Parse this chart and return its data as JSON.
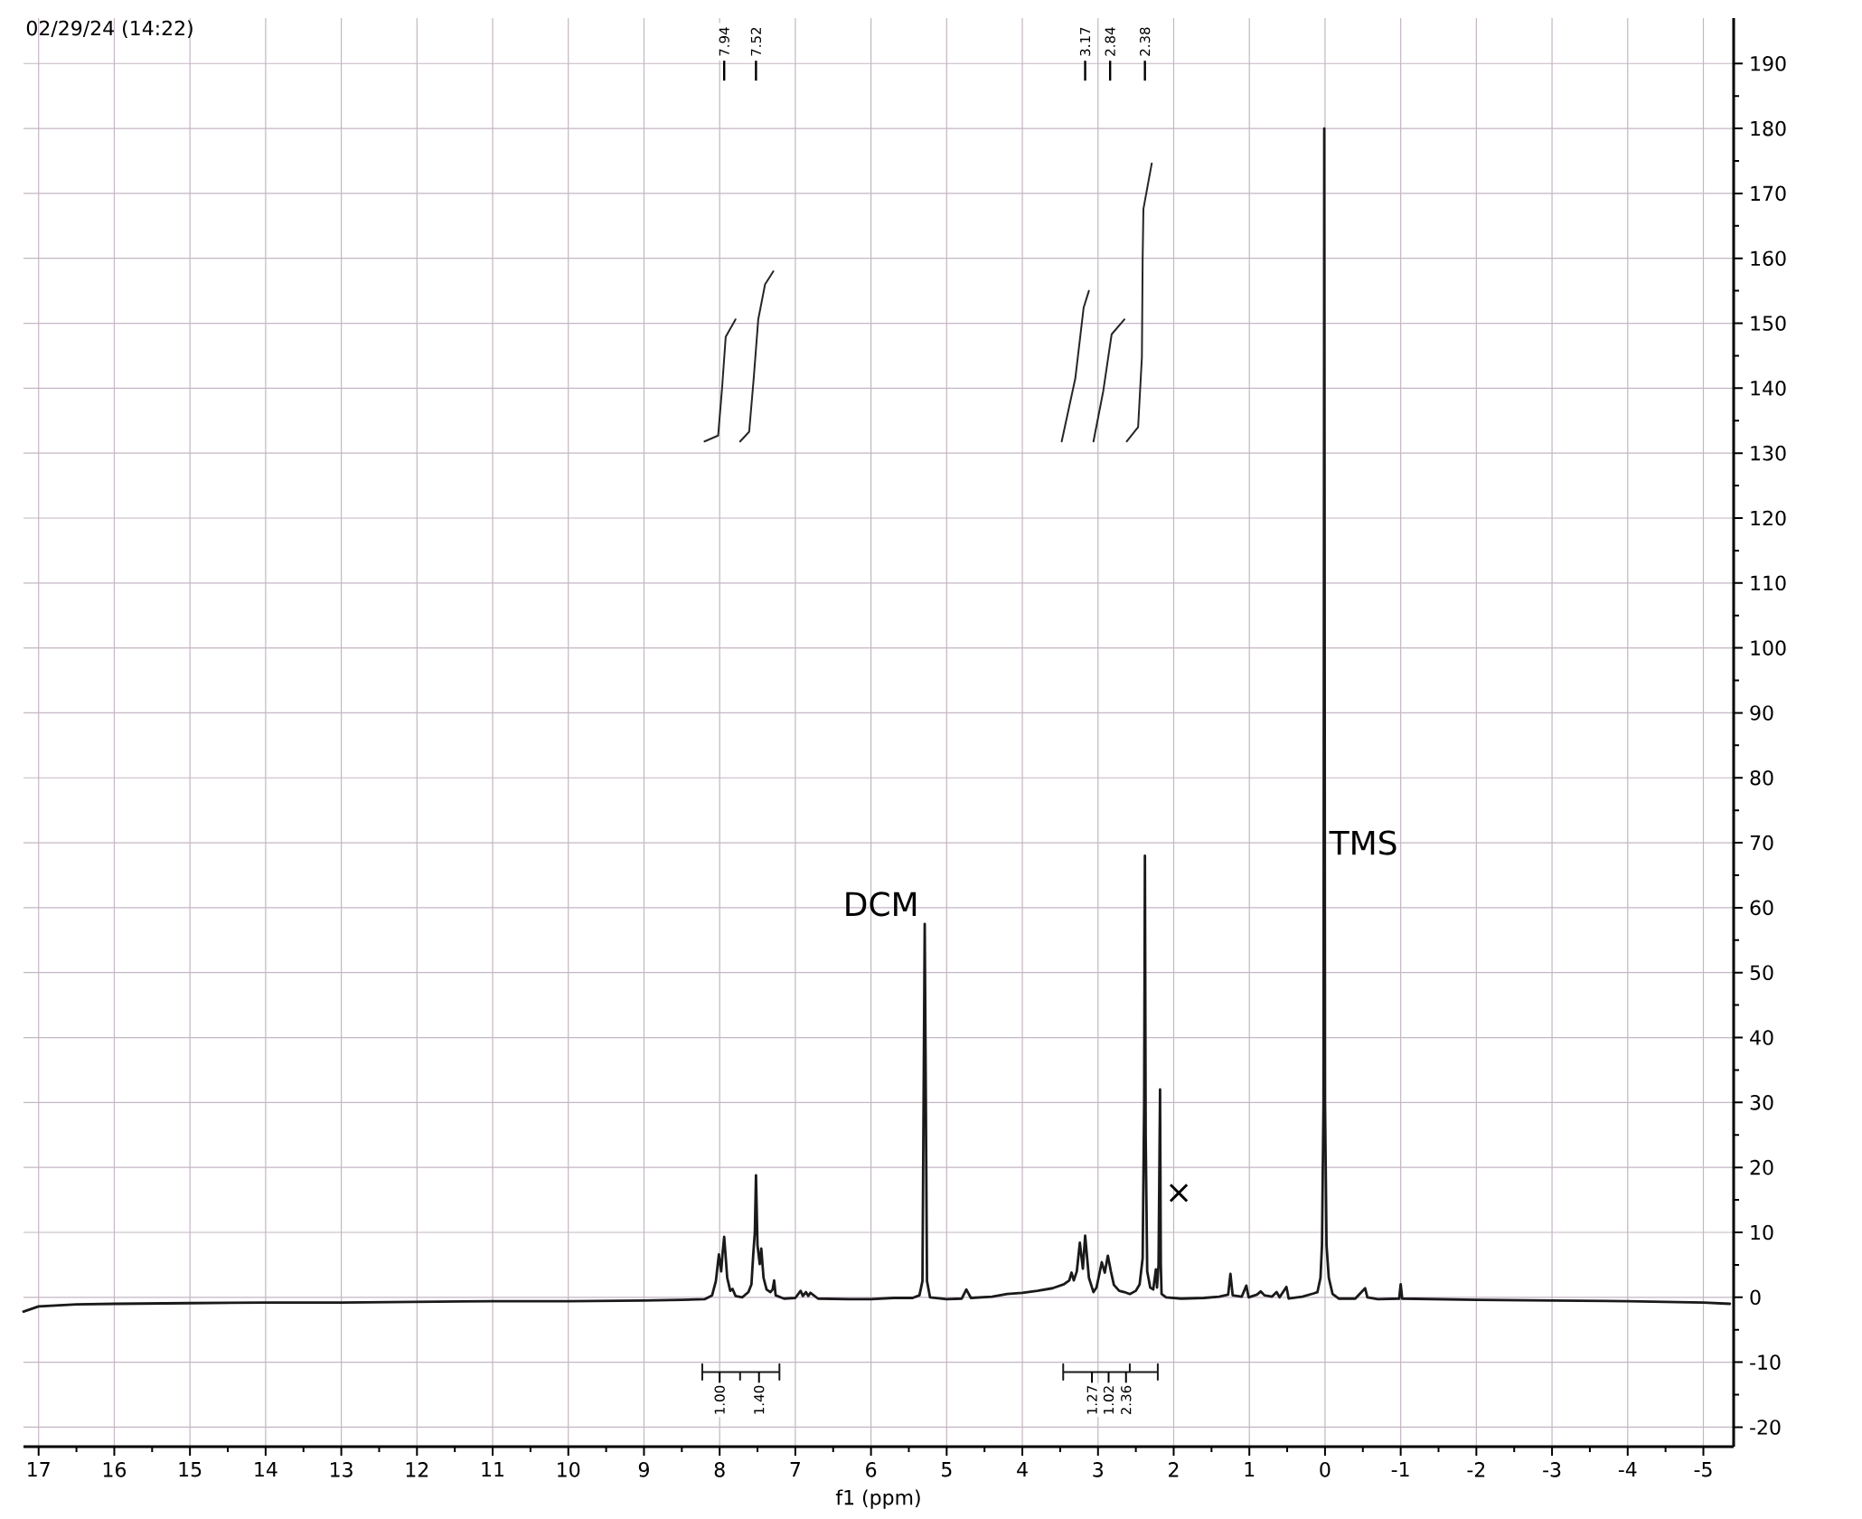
{
  "chart_data": {
    "type": "line",
    "xlabel": "f1 (ppm)",
    "xlim": [
      17.2,
      -5.4
    ],
    "ylim": [
      -23,
      197
    ],
    "xticks": [
      17,
      16,
      15,
      14,
      13,
      12,
      11,
      10,
      9,
      8,
      7,
      6,
      5,
      4,
      3,
      2,
      1,
      0,
      -1,
      -2,
      -3,
      -4,
      -5
    ],
    "yticks": [
      -20,
      -10,
      0,
      10,
      20,
      30,
      40,
      50,
      60,
      70,
      80,
      90,
      100,
      110,
      120,
      130,
      140,
      150,
      160,
      170,
      180,
      190
    ],
    "grid": true,
    "series": [
      {
        "color": "#1a1a1a",
        "x": [
          17.2,
          17.0,
          16.5,
          16.0,
          15.0,
          14.0,
          13.0,
          12.0,
          11.0,
          10.0,
          9.0,
          8.5,
          8.2,
          8.1,
          8.05,
          8.01,
          7.98,
          7.96,
          7.94,
          7.9,
          7.86,
          7.83,
          7.79,
          7.7,
          7.62,
          7.58,
          7.555,
          7.535,
          7.52,
          7.5,
          7.47,
          7.45,
          7.42,
          7.38,
          7.33,
          7.3,
          7.28,
          7.26,
          7.15,
          7.0,
          6.93,
          6.9,
          6.86,
          6.83,
          6.8,
          6.7,
          6.3,
          6.0,
          5.7,
          5.45,
          5.36,
          5.32,
          5.29,
          5.26,
          5.22,
          5.0,
          4.8,
          4.74,
          4.68,
          4.4,
          4.2,
          4.0,
          3.8,
          3.6,
          3.45,
          3.38,
          3.35,
          3.32,
          3.28,
          3.24,
          3.2,
          3.17,
          3.12,
          3.06,
          3.02,
          2.95,
          2.91,
          2.87,
          2.83,
          2.79,
          2.72,
          2.65,
          2.58,
          2.5,
          2.45,
          2.41,
          2.39,
          2.38,
          2.37,
          2.35,
          2.31,
          2.27,
          2.235,
          2.22,
          2.2,
          2.18,
          2.17,
          2.16,
          2.1,
          1.9,
          1.6,
          1.4,
          1.28,
          1.25,
          1.22,
          1.1,
          1.04,
          1.01,
          0.9,
          0.85,
          0.8,
          0.7,
          0.64,
          0.6,
          0.51,
          0.48,
          0.3,
          0.15,
          0.1,
          0.06,
          0.04,
          0.02,
          0.01,
          0.0,
          -0.02,
          -0.05,
          -0.1,
          -0.18,
          -0.4,
          -0.53,
          -0.56,
          -0.7,
          -0.98,
          -1.0,
          -1.02,
          -2.0,
          -3.0,
          -4.0,
          -5.0,
          -5.35
        ],
        "values": [
          -2.2,
          -1.4,
          -1.1,
          -1.0,
          -0.9,
          -0.8,
          -0.8,
          -0.7,
          -0.6,
          -0.6,
          -0.5,
          -0.4,
          -0.3,
          0.3,
          2.5,
          6.6,
          4.0,
          7.0,
          9.3,
          3.0,
          1.0,
          1.3,
          0.2,
          0.0,
          0.8,
          2.0,
          6.8,
          10,
          18.8,
          8,
          5.1,
          7.5,
          3.0,
          1.2,
          0.8,
          1.2,
          2.6,
          0.3,
          -0.2,
          -0.1,
          1.0,
          0.2,
          0.8,
          0.2,
          0.7,
          -0.2,
          -0.3,
          -0.3,
          -0.1,
          -0.1,
          0.3,
          2.5,
          57.5,
          2.5,
          0.0,
          -0.3,
          -0.2,
          1.2,
          -0.1,
          0.1,
          0.5,
          0.7,
          1.0,
          1.4,
          2.0,
          2.6,
          3.8,
          2.6,
          4.0,
          8.4,
          4.4,
          9.5,
          3.0,
          0.8,
          1.5,
          5.4,
          3.8,
          6.4,
          4.0,
          1.9,
          1.0,
          0.8,
          0.5,
          1.0,
          2.0,
          6.0,
          30,
          68,
          25,
          4.0,
          1.5,
          1.2,
          4.3,
          1.5,
          5.0,
          32,
          5.0,
          0.5,
          0.0,
          -0.2,
          -0.1,
          0.1,
          0.4,
          3.6,
          0.3,
          0.1,
          1.8,
          0.0,
          0.4,
          0.9,
          0.3,
          0.1,
          0.8,
          0.0,
          1.6,
          -0.2,
          0.1,
          0.6,
          0.8,
          3.0,
          8.0,
          30,
          180,
          30,
          8.0,
          3.0,
          0.5,
          -0.2,
          -0.2,
          1.4,
          0.0,
          -0.3,
          -0.2,
          2.0,
          -0.2,
          -0.4,
          -0.5,
          -0.6,
          -0.8,
          -1.0
        ]
      },
      {
        "color": "#262626",
        "x": [
          8.2,
          8.02,
          7.97,
          7.92,
          7.79
        ],
        "values": [
          131.8,
          132.7,
          139.7,
          147.9,
          150.6
        ]
      },
      {
        "color": "#262626",
        "x": [
          7.73,
          7.61,
          7.55,
          7.49,
          7.4,
          7.29
        ],
        "values": [
          131.8,
          133.3,
          141.5,
          150.6,
          156.0,
          158.0
        ]
      },
      {
        "color": "#262626",
        "x": [
          3.48,
          3.3,
          3.19,
          3.12
        ],
        "values": [
          131.8,
          141.5,
          152.4,
          155.0
        ]
      },
      {
        "color": "#262626",
        "x": [
          3.06,
          2.93,
          2.82,
          2.65
        ],
        "values": [
          131.8,
          139.6,
          148.3,
          150.6
        ]
      },
      {
        "color": "#262626",
        "x": [
          2.62,
          2.47,
          2.42,
          2.41,
          2.4,
          2.29
        ],
        "values": [
          131.8,
          134.0,
          144.8,
          160.0,
          167.6,
          174.6
        ]
      },
      {
        "color": "#1a1a1a",
        "x": [
          8.23,
          8.23,
          8.23,
          7.73,
          7.73,
          7.73,
          7.21,
          7.21,
          7.21
        ],
        "values": [
          -10.3,
          -12.7,
          -11.5,
          -11.5,
          -12.7,
          -11.5,
          -11.5,
          -10.3,
          -12.7
        ]
      },
      {
        "color": "#1a1a1a",
        "x": [
          3.46,
          3.46,
          3.46,
          2.58,
          2.58,
          2.58,
          2.21,
          2.21,
          2.21
        ],
        "values": [
          -10.3,
          -12.7,
          -11.5,
          -11.5,
          -10.3,
          -11.5,
          -11.5,
          -10.3,
          -12.7
        ]
      }
    ],
    "annotations": [
      "02/29/24 (14:22)",
      {
        "text": "7.94",
        "x": 7.94
      },
      {
        "text": "7.52",
        "x": 7.52
      },
      {
        "text": "3.17",
        "x": 3.17
      },
      {
        "text": "2.84",
        "x": 2.84
      },
      {
        "text": "2.38",
        "x": 2.38
      },
      {
        "text": "DCM",
        "x": 5.29,
        "y": 57.5
      },
      {
        "text": "TMS",
        "x": 0.02,
        "y": 70
      },
      {
        "text": "×",
        "x": 2.19,
        "y": 16
      },
      {
        "text": "1.00",
        "x": 8.0,
        "y": -11.5
      },
      {
        "text": "1.40",
        "x": 7.48,
        "y": -11.5
      },
      {
        "text": "1.27",
        "x": 3.08,
        "y": -11.5
      },
      {
        "text": "1.02",
        "x": 2.86,
        "y": -11.5
      },
      {
        "text": "2.36",
        "x": 2.63,
        "y": -11.5
      }
    ]
  }
}
